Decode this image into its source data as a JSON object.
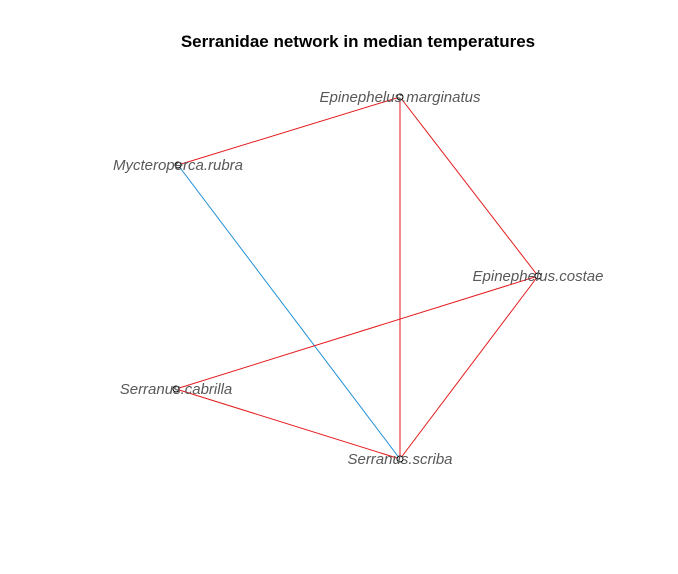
{
  "title": "Serranidae network in median temperatures",
  "colors": {
    "edge_positive": "#e41a1c",
    "edge_negative": "#1f8fd6",
    "node_stroke": "#000000",
    "label": "#595959"
  },
  "nodes": [
    {
      "id": "mycteroperca",
      "label": "Mycteroperca.rubra"
    },
    {
      "id": "ep_marginatus",
      "label": "Epinephelus.marginatus"
    },
    {
      "id": "ep_costae",
      "label": "Epinephelus.costae"
    },
    {
      "id": "se_cabrilla",
      "label": "Serranus.cabrilla"
    },
    {
      "id": "se_scriba",
      "label": "Serranus.scriba"
    }
  ],
  "edges": [
    {
      "from": "mycteroperca",
      "to": "ep_marginatus",
      "sign": "positive"
    },
    {
      "from": "mycteroperca",
      "to": "se_scriba",
      "sign": "negative"
    },
    {
      "from": "ep_marginatus",
      "to": "ep_costae",
      "sign": "positive"
    },
    {
      "from": "ep_marginatus",
      "to": "se_scriba",
      "sign": "positive"
    },
    {
      "from": "ep_costae",
      "to": "se_cabrilla",
      "sign": "positive"
    },
    {
      "from": "ep_costae",
      "to": "se_scriba",
      "sign": "positive"
    },
    {
      "from": "se_cabrilla",
      "to": "se_scriba",
      "sign": "positive"
    }
  ]
}
